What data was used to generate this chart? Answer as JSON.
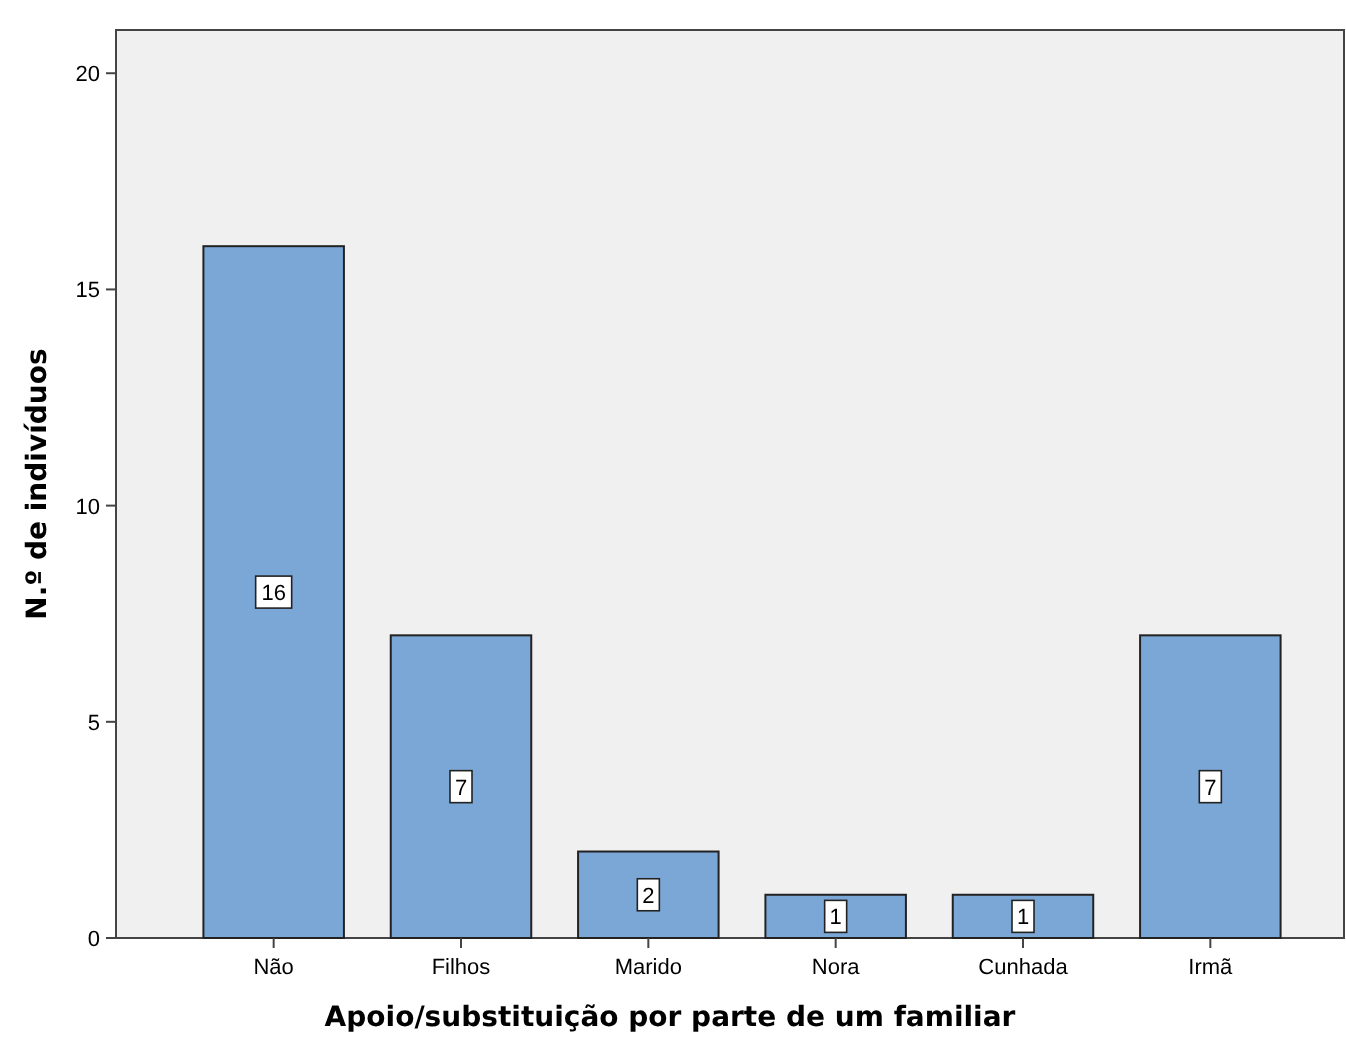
{
  "chart_data": {
    "type": "bar",
    "xlabel": "Apoio/substituição por parte de um familiar",
    "ylabel": "N.º de indivíduos",
    "categories": [
      "Não",
      "Filhos",
      "Marido",
      "Nora",
      "Cunhada",
      "Irmã"
    ],
    "values": [
      16,
      7,
      2,
      1,
      1,
      7
    ],
    "color": "#7ba7d6",
    "ylim": [
      0,
      21
    ],
    "yticks": [
      0,
      5,
      10,
      15,
      20
    ],
    "grid": false,
    "data_labels": true
  }
}
